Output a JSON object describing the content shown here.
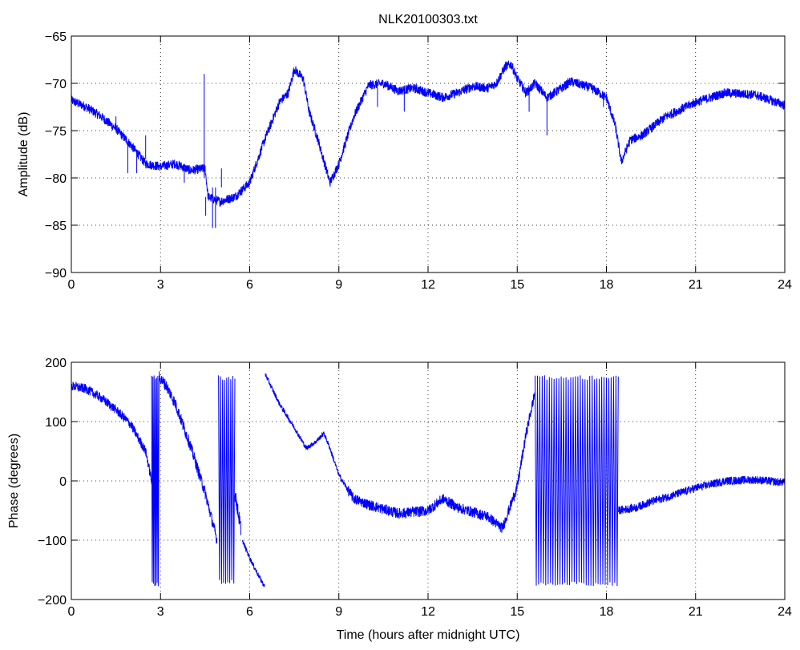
{
  "figure": {
    "title": "NLK20100303.txt",
    "line_color": "#0000ff",
    "background": "#ffffff",
    "grid": "dotted"
  },
  "chart_data": [
    {
      "type": "line",
      "ylabel": "Amplitude (dB)",
      "xlabel": "",
      "xlim": [
        0,
        24
      ],
      "ylim": [
        -90,
        -65
      ],
      "xticks": [
        0,
        3,
        6,
        9,
        12,
        15,
        18,
        21,
        24
      ],
      "yticks": [
        -90,
        -85,
        -80,
        -75,
        -70,
        -65
      ],
      "grid": true,
      "series": [
        {
          "noise": 0.5,
          "x": [
            0,
            0.5,
            1.0,
            1.5,
            2.0,
            2.5,
            3.0,
            3.5,
            4.0,
            4.5,
            4.6,
            5.0,
            5.5,
            6.0,
            6.5,
            7.0,
            7.3,
            7.5,
            7.8,
            8.0,
            8.3,
            8.7,
            9.0,
            9.5,
            10.0,
            10.5,
            11.0,
            11.5,
            12.0,
            12.5,
            13.0,
            13.5,
            14.0,
            14.3,
            14.6,
            14.8,
            15.0,
            15.3,
            15.6,
            16.0,
            16.5,
            16.8,
            17.2,
            17.5,
            18.0,
            18.3,
            18.5,
            18.8,
            19.2,
            19.6,
            20.0,
            21.0,
            22.0,
            23.0,
            24.0
          ],
          "y": [
            -71.8,
            -72.5,
            -73.5,
            -74.8,
            -76.5,
            -78.5,
            -78.8,
            -78.5,
            -79.2,
            -79.0,
            -82.0,
            -82.5,
            -82.0,
            -80.5,
            -76.0,
            -72.0,
            -71.0,
            -68.5,
            -69.5,
            -73.0,
            -76.0,
            -80.5,
            -78.5,
            -73.5,
            -70.2,
            -70.0,
            -70.8,
            -70.5,
            -71.0,
            -71.5,
            -71.0,
            -70.3,
            -70.5,
            -70.0,
            -68.2,
            -68.0,
            -69.5,
            -71.0,
            -70.0,
            -71.5,
            -70.5,
            -69.8,
            -70.2,
            -70.5,
            -71.5,
            -74.5,
            -78.3,
            -76.0,
            -75.5,
            -74.5,
            -73.5,
            -72.0,
            -71.0,
            -71.2,
            -72.3
          ]
        }
      ],
      "spikes": [
        {
          "x": 4.47,
          "y1": -80,
          "y2": -69
        },
        {
          "x": 4.52,
          "y1": -82,
          "y2": -84
        },
        {
          "x": 4.75,
          "y1": -81,
          "y2": -85.3
        },
        {
          "x": 4.85,
          "y1": -81,
          "y2": -85.3
        },
        {
          "x": 5.05,
          "y1": -81,
          "y2": -79
        },
        {
          "x": 1.5,
          "y1": -75,
          "y2": -73.5
        },
        {
          "x": 1.9,
          "y1": -76.5,
          "y2": -79.5
        },
        {
          "x": 2.2,
          "y1": -77,
          "y2": -79.5
        },
        {
          "x": 2.5,
          "y1": -78,
          "y2": -75.5
        },
        {
          "x": 3.8,
          "y1": -79,
          "y2": -80.5
        },
        {
          "x": 10.3,
          "y1": -70.5,
          "y2": -72.5
        },
        {
          "x": 11.2,
          "y1": -71,
          "y2": -73
        },
        {
          "x": 16.0,
          "y1": -71.5,
          "y2": -75.5
        },
        {
          "x": 15.4,
          "y1": -71,
          "y2": -73
        },
        {
          "x": 17.9,
          "y1": -71.5,
          "y2": -72.5
        }
      ]
    },
    {
      "type": "line",
      "ylabel": "Phase (degrees)",
      "xlabel": "Time (hours after midnight UTC)",
      "xlim": [
        0,
        24
      ],
      "ylim": [
        -200,
        200
      ],
      "xticks": [
        0,
        3,
        6,
        9,
        12,
        15,
        18,
        21,
        24
      ],
      "yticks": [
        -200,
        -100,
        0,
        100,
        200
      ],
      "grid": true,
      "series": [
        {
          "noise": 8,
          "x": [
            0,
            0.5,
            1.0,
            1.5,
            2.0,
            2.5,
            2.7
          ],
          "y": [
            160,
            155,
            140,
            120,
            95,
            50,
            0
          ]
        },
        {
          "noise": 10,
          "x": [
            2.95,
            3.2,
            3.5,
            4.0,
            4.5,
            4.9
          ],
          "y": [
            175,
            160,
            130,
            60,
            -20,
            -100
          ]
        },
        {
          "noise": 12,
          "x": [
            5.5,
            5.7
          ],
          "y": [
            -20,
            -80
          ]
        },
        {
          "noise": 4,
          "x": [
            5.75,
            6.0,
            6.3,
            6.5
          ],
          "y": [
            -100,
            -130,
            -160,
            -178
          ]
        },
        {
          "noise": 4,
          "x": [
            6.52,
            7.0,
            7.5,
            7.9,
            8.2,
            8.5,
            8.7,
            9.0,
            9.3
          ],
          "y": [
            180,
            130,
            90,
            55,
            65,
            80,
            55,
            10,
            -15
          ]
        },
        {
          "noise": 9,
          "x": [
            9.3,
            9.5,
            10.0,
            11.0,
            12.0,
            12.5,
            13.0,
            14.0,
            14.5,
            15.0,
            15.3,
            15.6
          ],
          "y": [
            -15,
            -30,
            -40,
            -55,
            -50,
            -30,
            -45,
            -60,
            -80,
            -10,
            80,
            150
          ]
        },
        {
          "noise": 7,
          "x": [
            18.4,
            19.0,
            19.5,
            20.0,
            21.0,
            22.0,
            23.0,
            24.0
          ],
          "y": [
            -50,
            -45,
            -35,
            -28,
            -12,
            0,
            2,
            -3
          ]
        }
      ],
      "wrap_bands": [
        {
          "x0": 2.7,
          "x1": 2.95,
          "lo": -178,
          "hi": 180,
          "n": 12
        },
        {
          "x0": 4.95,
          "x1": 5.5,
          "lo": -175,
          "hi": 178,
          "n": 16
        },
        {
          "x0": 15.6,
          "x1": 18.4,
          "lo": -178,
          "hi": 178,
          "n": 70
        }
      ]
    }
  ]
}
